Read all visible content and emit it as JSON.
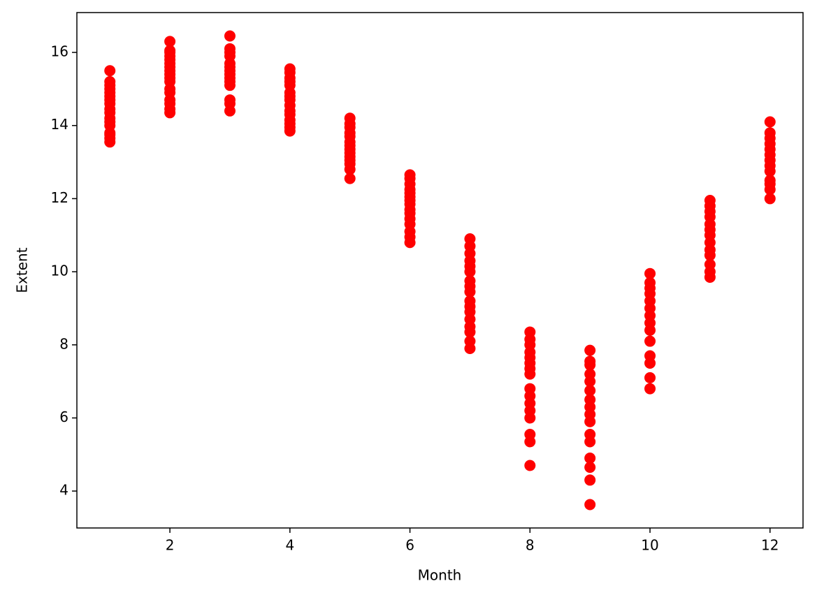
{
  "chart_data": {
    "type": "scatter",
    "xlabel": "Month",
    "ylabel": "Extent",
    "color": "#ff0000",
    "xlim": [
      0.45,
      12.55
    ],
    "ylim": [
      2.99,
      17.09
    ],
    "xticks": [
      2,
      4,
      6,
      8,
      10,
      12
    ],
    "yticks": [
      4,
      6,
      8,
      10,
      12,
      14,
      16
    ],
    "x": [
      1,
      1,
      1,
      1,
      1,
      1,
      1,
      1,
      1,
      1,
      1,
      1,
      1,
      1,
      1,
      1,
      1,
      2,
      2,
      2,
      2,
      2,
      2,
      2,
      2,
      2,
      2,
      2,
      2,
      2,
      2,
      2,
      2,
      2,
      3,
      3,
      3,
      3,
      3,
      3,
      3,
      3,
      3,
      3,
      3,
      3,
      3,
      3,
      4,
      4,
      4,
      4,
      4,
      4,
      4,
      4,
      4,
      4,
      4,
      4,
      4,
      4,
      4,
      5,
      5,
      5,
      5,
      5,
      5,
      5,
      5,
      5,
      5,
      5,
      5,
      5,
      5,
      6,
      6,
      6,
      6,
      6,
      6,
      6,
      6,
      6,
      6,
      6,
      6,
      6,
      6,
      6,
      7,
      7,
      7,
      7,
      7,
      7,
      7,
      7,
      7,
      7,
      7,
      7,
      7,
      7,
      7,
      7,
      7,
      8,
      8,
      8,
      8,
      8,
      8,
      8,
      8,
      8,
      8,
      8,
      8,
      8,
      8,
      8,
      8,
      9,
      9,
      9,
      9,
      9,
      9,
      9,
      9,
      9,
      9,
      9,
      9,
      9,
      9,
      9,
      9,
      10,
      10,
      10,
      10,
      10,
      10,
      10,
      10,
      10,
      10,
      10,
      10,
      10,
      10,
      11,
      11,
      11,
      11,
      11,
      11,
      11,
      11,
      11,
      11,
      11,
      11,
      11,
      12,
      12,
      12,
      12,
      12,
      12,
      12,
      12,
      12,
      12,
      12,
      12,
      12
    ],
    "values": [
      13.55,
      13.65,
      13.75,
      13.8,
      14.0,
      14.1,
      14.2,
      14.35,
      14.45,
      14.6,
      14.7,
      14.8,
      14.9,
      15.0,
      15.1,
      15.2,
      15.5,
      14.35,
      14.45,
      14.6,
      14.7,
      14.9,
      15.0,
      15.2,
      15.3,
      15.4,
      15.5,
      15.6,
      15.7,
      15.8,
      15.9,
      16.0,
      16.05,
      16.3,
      14.4,
      14.6,
      14.7,
      15.1,
      15.2,
      15.3,
      15.4,
      15.5,
      15.6,
      15.7,
      15.9,
      16.0,
      16.1,
      16.45,
      13.85,
      13.95,
      14.05,
      14.15,
      14.3,
      14.4,
      14.55,
      14.7,
      14.8,
      14.9,
      15.1,
      15.2,
      15.3,
      15.45,
      15.55,
      12.55,
      12.8,
      12.95,
      13.05,
      13.15,
      13.25,
      13.35,
      13.45,
      13.55,
      13.7,
      13.8,
      13.95,
      14.05,
      14.2,
      10.8,
      10.95,
      11.1,
      11.3,
      11.45,
      11.6,
      11.7,
      11.85,
      11.95,
      12.05,
      12.15,
      12.25,
      12.4,
      12.55,
      12.65,
      7.9,
      8.1,
      8.35,
      8.5,
      8.7,
      8.9,
      9.05,
      9.2,
      9.45,
      9.6,
      9.75,
      10.0,
      10.15,
      10.3,
      10.5,
      10.7,
      10.9,
      4.7,
      5.35,
      5.55,
      6.0,
      6.2,
      6.4,
      6.6,
      6.8,
      7.2,
      7.35,
      7.5,
      7.65,
      7.8,
      8.0,
      8.15,
      8.35,
      3.63,
      4.3,
      4.65,
      4.9,
      5.35,
      5.55,
      5.9,
      6.1,
      6.3,
      6.5,
      6.75,
      7.0,
      7.2,
      7.45,
      7.55,
      7.85,
      6.8,
      7.1,
      7.5,
      7.7,
      8.1,
      8.4,
      8.6,
      8.8,
      9.0,
      9.2,
      9.4,
      9.55,
      9.7,
      9.95,
      9.85,
      10.0,
      10.2,
      10.45,
      10.6,
      10.8,
      11.0,
      11.15,
      11.3,
      11.5,
      11.65,
      11.8,
      11.95,
      12.0,
      12.25,
      12.4,
      12.5,
      12.75,
      12.9,
      13.05,
      13.2,
      13.35,
      13.5,
      13.65,
      13.8,
      14.1
    ]
  }
}
